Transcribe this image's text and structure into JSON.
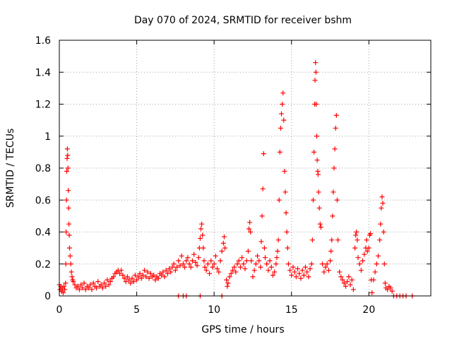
{
  "chart_data": {
    "type": "scatter",
    "title": "Day 070 of 2024, SRMTID for receiver bshm",
    "xlabel": "GPS time / hours",
    "ylabel": "SRMTID / TECUs",
    "xlim": [
      0,
      24
    ],
    "ylim": [
      0,
      1.6
    ],
    "xticks": [
      0,
      5,
      10,
      15,
      20
    ],
    "xtick_labels": [
      "0",
      "5",
      "10",
      "15",
      "20"
    ],
    "yticks": [
      0,
      0.2,
      0.4,
      0.6,
      0.8,
      1.0,
      1.2,
      1.4,
      1.6
    ],
    "ytick_labels": [
      "0",
      "0.2",
      "0.4",
      "0.6",
      "0.8",
      "1",
      "1.2",
      "1.4",
      "1.6"
    ],
    "grid": true,
    "marker": "+",
    "color": "#ff0000",
    "series": [
      {
        "name": "SRMTID",
        "points": [
          [
            0.0,
            0.07
          ],
          [
            0.05,
            0.04
          ],
          [
            0.1,
            0.06
          ],
          [
            0.15,
            0.03
          ],
          [
            0.2,
            0.05
          ],
          [
            0.25,
            0.02
          ],
          [
            0.3,
            0.06
          ],
          [
            0.35,
            0.04
          ],
          [
            0.4,
            0.08
          ],
          [
            0.42,
            0.2
          ],
          [
            0.44,
            0.4
          ],
          [
            0.46,
            0.6
          ],
          [
            0.48,
            0.78
          ],
          [
            0.5,
            0.86
          ],
          [
            0.52,
            0.92
          ],
          [
            0.54,
            0.88
          ],
          [
            0.56,
            0.8
          ],
          [
            0.58,
            0.66
          ],
          [
            0.6,
            0.55
          ],
          [
            0.62,
            0.45
          ],
          [
            0.64,
            0.38
          ],
          [
            0.66,
            0.3
          ],
          [
            0.7,
            0.25
          ],
          [
            0.74,
            0.2
          ],
          [
            0.78,
            0.15
          ],
          [
            0.82,
            0.12
          ],
          [
            0.86,
            0.1
          ],
          [
            0.9,
            0.09
          ],
          [
            1.0,
            0.07
          ],
          [
            1.1,
            0.05
          ],
          [
            1.2,
            0.06
          ],
          [
            1.3,
            0.04
          ],
          [
            1.4,
            0.07
          ],
          [
            1.5,
            0.05
          ],
          [
            1.6,
            0.08
          ],
          [
            1.7,
            0.04
          ],
          [
            1.8,
            0.06
          ],
          [
            1.9,
            0.05
          ],
          [
            2.0,
            0.07
          ],
          [
            2.1,
            0.04
          ],
          [
            2.2,
            0.08
          ],
          [
            2.3,
            0.06
          ],
          [
            2.4,
            0.05
          ],
          [
            2.5,
            0.09
          ],
          [
            2.6,
            0.06
          ],
          [
            2.7,
            0.07
          ],
          [
            2.8,
            0.05
          ],
          [
            2.9,
            0.08
          ],
          [
            3.0,
            0.06
          ],
          [
            3.1,
            0.1
          ],
          [
            3.2,
            0.07
          ],
          [
            3.3,
            0.09
          ],
          [
            3.4,
            0.11
          ],
          [
            3.5,
            0.12
          ],
          [
            3.6,
            0.14
          ],
          [
            3.7,
            0.15
          ],
          [
            3.8,
            0.16
          ],
          [
            3.9,
            0.14
          ],
          [
            4.0,
            0.16
          ],
          [
            4.1,
            0.13
          ],
          [
            4.2,
            0.11
          ],
          [
            4.3,
            0.09
          ],
          [
            4.4,
            0.12
          ],
          [
            4.5,
            0.1
          ],
          [
            4.6,
            0.08
          ],
          [
            4.7,
            0.11
          ],
          [
            4.8,
            0.09
          ],
          [
            4.9,
            0.13
          ],
          [
            5.0,
            0.1
          ],
          [
            5.1,
            0.12
          ],
          [
            5.2,
            0.14
          ],
          [
            5.3,
            0.11
          ],
          [
            5.4,
            0.13
          ],
          [
            5.5,
            0.16
          ],
          [
            5.6,
            0.12
          ],
          [
            5.7,
            0.15
          ],
          [
            5.8,
            0.11
          ],
          [
            5.9,
            0.14
          ],
          [
            6.0,
            0.12
          ],
          [
            6.1,
            0.13
          ],
          [
            6.2,
            0.1
          ],
          [
            6.3,
            0.12
          ],
          [
            6.4,
            0.11
          ],
          [
            6.5,
            0.14
          ],
          [
            6.6,
            0.13
          ],
          [
            6.7,
            0.15
          ],
          [
            6.8,
            0.12
          ],
          [
            6.9,
            0.16
          ],
          [
            7.0,
            0.14
          ],
          [
            7.1,
            0.17
          ],
          [
            7.2,
            0.15
          ],
          [
            7.3,
            0.18
          ],
          [
            7.4,
            0.2
          ],
          [
            7.5,
            0.16
          ],
          [
            7.6,
            0.18
          ],
          [
            7.7,
            0.22
          ],
          [
            7.8,
            0.19
          ],
          [
            7.9,
            0.25
          ],
          [
            8.0,
            0.2
          ],
          [
            8.1,
            0.18
          ],
          [
            8.2,
            0.22
          ],
          [
            8.3,
            0.24
          ],
          [
            8.4,
            0.2
          ],
          [
            8.5,
            0.18
          ],
          [
            8.6,
            0.22
          ],
          [
            8.7,
            0.26
          ],
          [
            8.8,
            0.21
          ],
          [
            8.9,
            0.19
          ],
          [
            9.0,
            0.24
          ],
          [
            9.05,
            0.3
          ],
          [
            9.1,
            0.36
          ],
          [
            9.15,
            0.42
          ],
          [
            9.2,
            0.45
          ],
          [
            9.25,
            0.38
          ],
          [
            9.3,
            0.3
          ],
          [
            9.35,
            0.22
          ],
          [
            9.4,
            0.18
          ],
          [
            9.5,
            0.16
          ],
          [
            9.6,
            0.2
          ],
          [
            9.7,
            0.14
          ],
          [
            9.8,
            0.22
          ],
          [
            9.9,
            0.18
          ],
          [
            10.0,
            0.2
          ],
          [
            10.1,
            0.25
          ],
          [
            10.2,
            0.17
          ],
          [
            10.3,
            0.15
          ],
          [
            10.4,
            0.22
          ],
          [
            10.5,
            0.28
          ],
          [
            10.6,
            0.33
          ],
          [
            10.65,
            0.37
          ],
          [
            10.7,
            0.3
          ],
          [
            10.8,
            0.1
          ],
          [
            10.85,
            0.06
          ],
          [
            10.9,
            0.08
          ],
          [
            11.0,
            0.12
          ],
          [
            11.1,
            0.14
          ],
          [
            11.2,
            0.16
          ],
          [
            11.3,
            0.18
          ],
          [
            11.4,
            0.15
          ],
          [
            11.5,
            0.2
          ],
          [
            11.6,
            0.22
          ],
          [
            11.7,
            0.18
          ],
          [
            11.8,
            0.24
          ],
          [
            11.9,
            0.2
          ],
          [
            12.0,
            0.17
          ],
          [
            12.1,
            0.22
          ],
          [
            12.2,
            0.28
          ],
          [
            12.25,
            0.42
          ],
          [
            12.3,
            0.46
          ],
          [
            12.35,
            0.4
          ],
          [
            12.4,
            0.22
          ],
          [
            12.5,
            0.12
          ],
          [
            12.6,
            0.16
          ],
          [
            12.7,
            0.2
          ],
          [
            12.8,
            0.25
          ],
          [
            12.9,
            0.22
          ],
          [
            13.0,
            0.18
          ],
          [
            13.05,
            0.34
          ],
          [
            13.1,
            0.5
          ],
          [
            13.15,
            0.67
          ],
          [
            13.2,
            0.89
          ],
          [
            13.25,
            0.3
          ],
          [
            13.3,
            0.24
          ],
          [
            13.4,
            0.2
          ],
          [
            13.5,
            0.16
          ],
          [
            13.6,
            0.22
          ],
          [
            13.7,
            0.18
          ],
          [
            13.8,
            0.13
          ],
          [
            13.9,
            0.15
          ],
          [
            14.0,
            0.2
          ],
          [
            14.05,
            0.24
          ],
          [
            14.1,
            0.28
          ],
          [
            14.15,
            0.35
          ],
          [
            14.2,
            0.6
          ],
          [
            14.25,
            0.9
          ],
          [
            14.3,
            1.05
          ],
          [
            14.35,
            1.14
          ],
          [
            14.4,
            1.2
          ],
          [
            14.45,
            1.27
          ],
          [
            14.5,
            1.1
          ],
          [
            14.55,
            0.78
          ],
          [
            14.6,
            0.65
          ],
          [
            14.65,
            0.52
          ],
          [
            14.7,
            0.4
          ],
          [
            14.75,
            0.3
          ],
          [
            14.8,
            0.2
          ],
          [
            14.9,
            0.16
          ],
          [
            15.0,
            0.13
          ],
          [
            15.1,
            0.18
          ],
          [
            15.2,
            0.15
          ],
          [
            15.3,
            0.12
          ],
          [
            15.4,
            0.17
          ],
          [
            15.5,
            0.14
          ],
          [
            15.6,
            0.11
          ],
          [
            15.7,
            0.16
          ],
          [
            15.8,
            0.13
          ],
          [
            15.9,
            0.18
          ],
          [
            16.0,
            0.15
          ],
          [
            16.1,
            0.12
          ],
          [
            16.2,
            0.17
          ],
          [
            16.3,
            0.2
          ],
          [
            16.35,
            0.35
          ],
          [
            16.4,
            0.6
          ],
          [
            16.45,
            0.9
          ],
          [
            16.5,
            1.2
          ],
          [
            16.52,
            1.35
          ],
          [
            16.55,
            1.46
          ],
          [
            16.58,
            1.4
          ],
          [
            16.6,
            1.2
          ],
          [
            16.63,
            1.0
          ],
          [
            16.66,
            0.85
          ],
          [
            16.7,
            0.78
          ],
          [
            16.72,
            0.76
          ],
          [
            16.75,
            0.65
          ],
          [
            16.8,
            0.55
          ],
          [
            16.85,
            0.45
          ],
          [
            16.9,
            0.43
          ],
          [
            17.0,
            0.2
          ],
          [
            17.1,
            0.15
          ],
          [
            17.2,
            0.18
          ],
          [
            17.3,
            0.2
          ],
          [
            17.4,
            0.16
          ],
          [
            17.5,
            0.22
          ],
          [
            17.55,
            0.28
          ],
          [
            17.6,
            0.35
          ],
          [
            17.65,
            0.5
          ],
          [
            17.7,
            0.65
          ],
          [
            17.75,
            0.8
          ],
          [
            17.8,
            0.92
          ],
          [
            17.85,
            1.05
          ],
          [
            17.9,
            1.13
          ],
          [
            17.95,
            0.6
          ],
          [
            18.0,
            0.35
          ],
          [
            18.1,
            0.15
          ],
          [
            18.2,
            0.12
          ],
          [
            18.3,
            0.1
          ],
          [
            18.4,
            0.08
          ],
          [
            18.5,
            0.06
          ],
          [
            18.6,
            0.09
          ],
          [
            18.7,
            0.12
          ],
          [
            18.8,
            0.07
          ],
          [
            18.9,
            0.1
          ],
          [
            19.0,
            0.04
          ],
          [
            19.1,
            0.3
          ],
          [
            19.15,
            0.38
          ],
          [
            19.2,
            0.4
          ],
          [
            19.25,
            0.35
          ],
          [
            19.3,
            0.24
          ],
          [
            19.4,
            0.2
          ],
          [
            19.5,
            0.16
          ],
          [
            19.6,
            0.22
          ],
          [
            19.7,
            0.26
          ],
          [
            19.8,
            0.3
          ],
          [
            19.85,
            0.35
          ],
          [
            19.9,
            0.28
          ],
          [
            20.0,
            0.3
          ],
          [
            20.05,
            0.38
          ],
          [
            20.1,
            0.39
          ],
          [
            20.15,
            0.1
          ],
          [
            20.2,
            0.02
          ],
          [
            20.3,
            0.1
          ],
          [
            20.4,
            0.15
          ],
          [
            20.5,
            0.2
          ],
          [
            20.6,
            0.25
          ],
          [
            20.7,
            0.35
          ],
          [
            20.75,
            0.45
          ],
          [
            20.8,
            0.55
          ],
          [
            20.85,
            0.62
          ],
          [
            20.9,
            0.58
          ],
          [
            20.95,
            0.4
          ],
          [
            21.0,
            0.2
          ],
          [
            21.05,
            0.08
          ],
          [
            21.1,
            0.05
          ],
          [
            21.2,
            0.04
          ],
          [
            21.3,
            0.06
          ],
          [
            21.4,
            0.05
          ],
          [
            21.5,
            0.03
          ],
          [
            21.6,
            0.0
          ],
          [
            21.8,
            0.0
          ],
          [
            22.0,
            0.0
          ],
          [
            22.2,
            0.0
          ],
          [
            22.4,
            0.0
          ],
          [
            22.8,
            0.0
          ],
          [
            7.7,
            0.0
          ],
          [
            8.0,
            0.0
          ],
          [
            8.2,
            0.0
          ],
          [
            9.1,
            0.0
          ],
          [
            10.5,
            0.0
          ]
        ]
      }
    ]
  }
}
